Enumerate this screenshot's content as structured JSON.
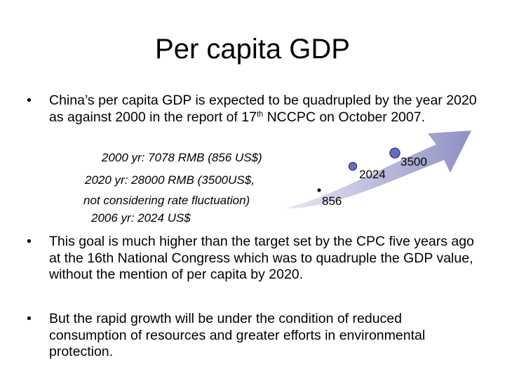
{
  "title": "Per capita GDP",
  "bullets": {
    "b1_part1": "China’s per capita GDP is expected to be quadrupled by the year 2020 as against 2000 in the report of 17",
    "b1_sup": "th",
    "b1_part2": " NCCPC on October 2007.",
    "b2": "This goal is much higher than the target set by the CPC five years ago at the 16th National Congress which was to quadruple the GDP value, without the mention of per capita by 2020.",
    "b3": "But the rapid growth will be under the condition of reduced consumption of resources and greater efforts in environmental protection.",
    "bullet_char": "•"
  },
  "details": {
    "line1": "2000 yr: 7078 RMB (856 US$)",
    "line2": "2020 yr: 28000 RMB (3500US$,",
    "line3": "not considering rate fluctuation)",
    "line4": "2006 yr: 2024 US$"
  },
  "growth_markers": [
    {
      "label": "856",
      "value": 856,
      "year": 2000
    },
    {
      "label": "2024",
      "value": 2024,
      "year": 2006
    },
    {
      "label": "3500",
      "value": 3500,
      "year": 2020
    }
  ],
  "colors": {
    "arrow_light": "#e8e8f3",
    "arrow_dark": "#8f90c4",
    "marker_fill": "#6a6cc0",
    "marker_stroke": "#3b3d86"
  }
}
